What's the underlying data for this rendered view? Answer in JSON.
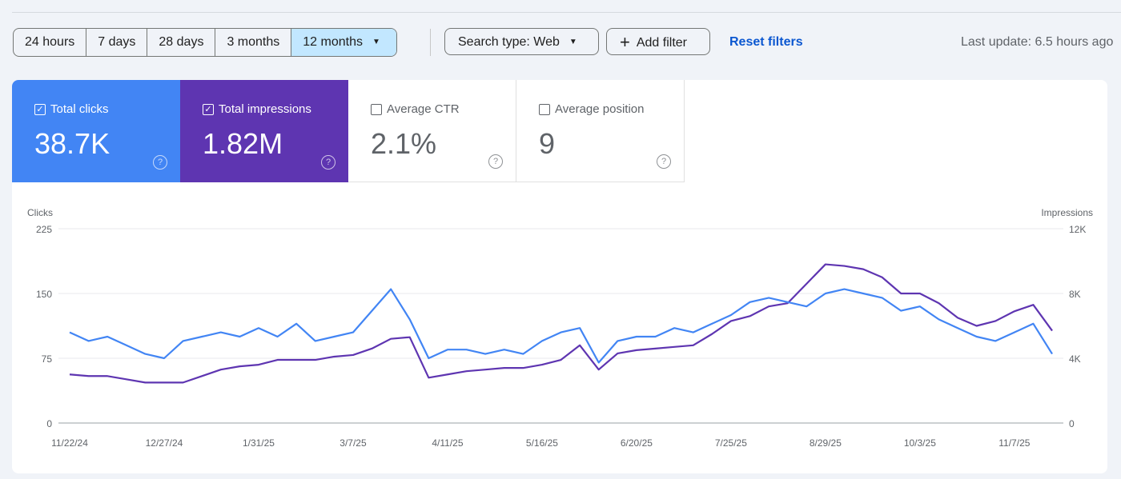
{
  "toolbar": {
    "ranges": [
      "24 hours",
      "7 days",
      "28 days",
      "3 months",
      "12 months"
    ],
    "search_type": "Search type: Web",
    "add_filter": "Add filter",
    "reset_filters": "Reset filters",
    "last_update": "Last update: 6.5 hours ago"
  },
  "metrics": [
    {
      "label": "Total clicks",
      "value": "38.7K",
      "checked": true
    },
    {
      "label": "Total impressions",
      "value": "1.82M",
      "checked": true
    },
    {
      "label": "Average CTR",
      "value": "2.1%",
      "checked": false
    },
    {
      "label": "Average position",
      "value": "9",
      "checked": false
    }
  ],
  "colors": {
    "clicks": "#4285f4",
    "impressions": "#5e35b1"
  },
  "chart_data": {
    "type": "line",
    "left_axis": {
      "label": "Clicks",
      "ticks": [
        "0",
        "75",
        "150",
        "225"
      ],
      "range": [
        0,
        225
      ]
    },
    "right_axis": {
      "label": "Impressions",
      "ticks": [
        "0",
        "4K",
        "8K",
        "12K"
      ],
      "range": [
        0,
        12000
      ]
    },
    "x_ticks": [
      "11/22/24",
      "12/27/24",
      "1/31/25",
      "3/7/25",
      "4/11/25",
      "5/16/25",
      "6/20/25",
      "7/25/25",
      "8/29/25",
      "10/3/25",
      "11/7/25"
    ],
    "x_tick_days": [
      0,
      35,
      70,
      105,
      140,
      175,
      210,
      245,
      280,
      315,
      350
    ],
    "x_days_step": 7,
    "series": [
      {
        "name": "Clicks",
        "axis": "left",
        "values": [
          105,
          95,
          100,
          90,
          80,
          75,
          95,
          100,
          105,
          100,
          110,
          100,
          115,
          95,
          100,
          105,
          130,
          155,
          120,
          75,
          85,
          85,
          80,
          85,
          80,
          95,
          105,
          110,
          70,
          95,
          100,
          100,
          110,
          105,
          115,
          125,
          140,
          145,
          140,
          135,
          150,
          155,
          150,
          145,
          130,
          135,
          120,
          110,
          100,
          95,
          105,
          115,
          80
        ]
      },
      {
        "name": "Impressions",
        "axis": "right",
        "values": [
          3000,
          2900,
          2900,
          2700,
          2500,
          2500,
          2500,
          2900,
          3300,
          3500,
          3600,
          3900,
          3900,
          3900,
          4100,
          4200,
          4600,
          5200,
          5300,
          2800,
          3000,
          3200,
          3300,
          3400,
          3400,
          3600,
          3900,
          4800,
          3300,
          4300,
          4500,
          4600,
          4700,
          4800,
          5500,
          6300,
          6600,
          7200,
          7400,
          8600,
          9800,
          9700,
          9500,
          9000,
          8000,
          8000,
          7400,
          6500,
          6000,
          6300,
          6900,
          7300,
          5700
        ]
      }
    ]
  }
}
